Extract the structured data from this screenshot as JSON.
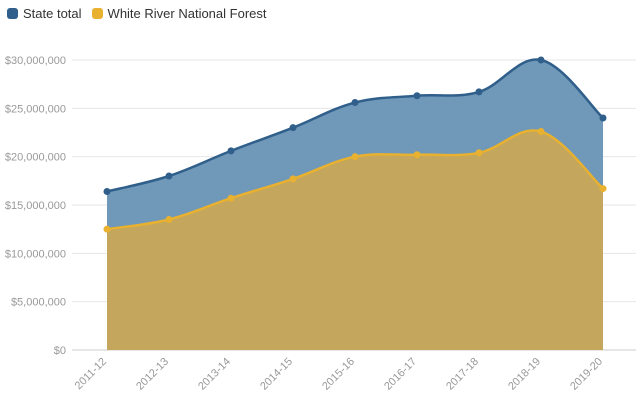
{
  "chart_data": {
    "type": "area",
    "categories": [
      "2011-12",
      "2012-13",
      "2013-14",
      "2014-15",
      "2015-16",
      "2016-17",
      "2017-18",
      "2018-19",
      "2019-20"
    ],
    "series": [
      {
        "name": "State total",
        "color": "#2f5f8a",
        "fill": "#7098b8",
        "values": [
          16400000,
          18000000,
          20600000,
          23000000,
          25600000,
          26300000,
          26700000,
          30000000,
          24000000
        ]
      },
      {
        "name": "White River National Forest",
        "color": "#e8b130",
        "fill": "#c4a65c",
        "values": [
          12500000,
          13500000,
          15700000,
          17700000,
          20000000,
          20200000,
          20400000,
          22600000,
          16700000
        ]
      }
    ],
    "ylim": [
      0,
      30000000
    ],
    "yticks": [
      "$0",
      "$5,000,000",
      "$10,000,000",
      "$15,000,000",
      "$20,000,000",
      "$25,000,000",
      "$30,000,000"
    ],
    "ytick_values": [
      0,
      5000000,
      10000000,
      15000000,
      20000000,
      25000000,
      30000000
    ],
    "legend_position": "top-left",
    "grid": true,
    "title": "",
    "xlabel": "",
    "ylabel": ""
  }
}
